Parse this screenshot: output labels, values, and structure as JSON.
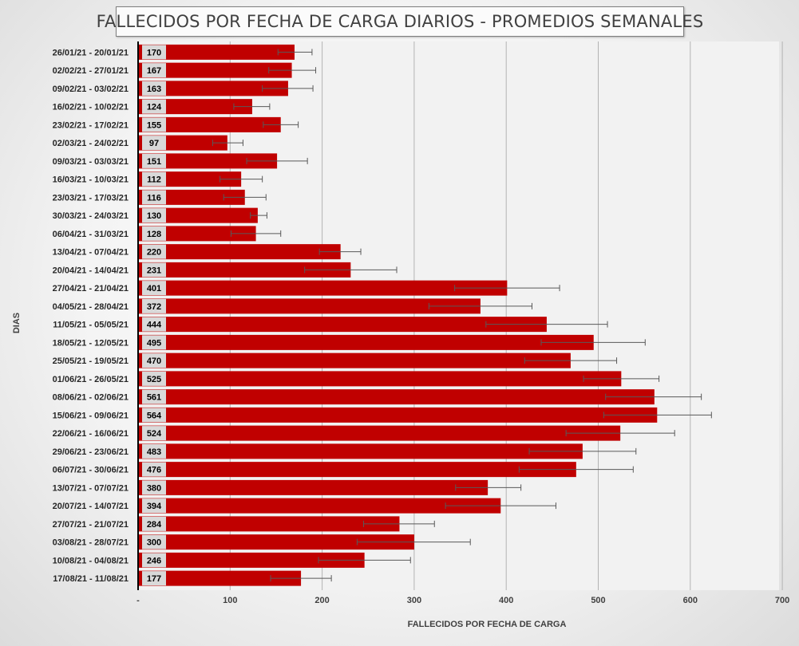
{
  "chart_data": {
    "type": "bar",
    "orientation": "horizontal",
    "title": "FALLECIDOS POR FECHA DE CARGA DIARIOS - PROMEDIOS SEMANALES",
    "xlabel": "FALLECIDOS POR FECHA DE CARGA",
    "ylabel": "DIAS",
    "xlim": [
      0,
      700
    ],
    "x_ticks": [
      "-",
      "100",
      "200",
      "300",
      "400",
      "500",
      "600",
      "700"
    ],
    "grid": "vertical",
    "legend": "none",
    "bar_color": "#c00000",
    "categories": [
      "26/01/21 - 20/01/21",
      "02/02/21 - 27/01/21",
      "09/02/21 - 03/02/21",
      "16/02/21 - 10/02/21",
      "23/02/21 - 17/02/21",
      "02/03/21 - 24/02/21",
      "09/03/21 - 03/03/21",
      "16/03/21 - 10/03/21",
      "23/03/21 - 17/03/21",
      "30/03/21 - 24/03/21",
      "06/04/21 - 31/03/21",
      "13/04/21 - 07/04/21",
      "20/04/21 - 14/04/21",
      "27/04/21 - 21/04/21",
      "04/05/21 - 28/04/21",
      "11/05/21 - 05/05/21",
      "18/05/21 - 12/05/21",
      "25/05/21 - 19/05/21",
      "01/06/21 - 26/05/21",
      "08/06/21 - 02/06/21",
      "15/06/21 - 09/06/21",
      "22/06/21 - 16/06/21",
      "29/06/21 - 23/06/21",
      "06/07/21 - 30/06/21",
      "13/07/21 - 07/07/21",
      "20/07/21 - 14/07/21",
      "27/07/21 - 21/07/21",
      "03/08/21 - 28/07/21",
      "10/08/21 - 04/08/21",
      "17/08/21 - 11/08/21"
    ],
    "values": [
      170,
      167,
      163,
      124,
      155,
      97,
      151,
      112,
      116,
      130,
      128,
      220,
      231,
      401,
      372,
      444,
      495,
      470,
      525,
      561,
      564,
      524,
      483,
      476,
      380,
      394,
      284,
      300,
      246,
      177
    ],
    "error_low": [
      152,
      142,
      135,
      104,
      136,
      81,
      118,
      89,
      93,
      122,
      101,
      197,
      181,
      344,
      316,
      378,
      438,
      420,
      484,
      508,
      506,
      465,
      425,
      414,
      345,
      334,
      245,
      238,
      196,
      144
    ],
    "error_high": [
      189,
      193,
      190,
      143,
      174,
      114,
      184,
      135,
      139,
      140,
      155,
      242,
      281,
      458,
      428,
      510,
      551,
      520,
      566,
      612,
      623,
      583,
      541,
      538,
      416,
      454,
      322,
      361,
      296,
      210
    ]
  }
}
